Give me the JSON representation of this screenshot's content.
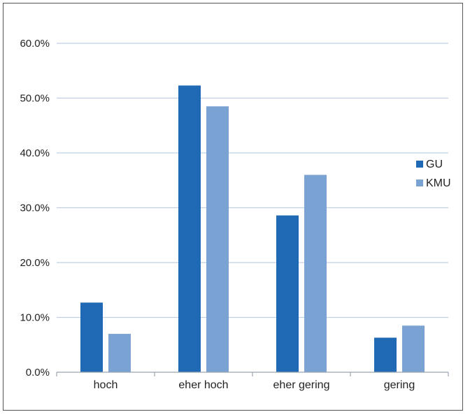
{
  "chart_data": {
    "type": "bar",
    "title": "",
    "xlabel": "",
    "ylabel": "",
    "categories": [
      "hoch",
      "eher hoch",
      "eher gering",
      "gering"
    ],
    "series": [
      {
        "name": "GU",
        "color": "#1f69b5",
        "values": [
          12.7,
          52.3,
          28.6,
          6.3
        ]
      },
      {
        "name": "KMU",
        "color": "#7aa3d4",
        "values": [
          7.0,
          48.5,
          36.0,
          8.5
        ]
      }
    ],
    "ylim": [
      0,
      60
    ],
    "yticks": [
      0,
      10,
      20,
      30,
      40,
      50,
      60
    ],
    "ytick_labels": [
      "0.0%",
      "10.0%",
      "20.0%",
      "30.0%",
      "40.0%",
      "50.0%",
      "60.0%"
    ],
    "grid": true,
    "gridline_color": "#bfd0e6",
    "legend_position": "right"
  }
}
